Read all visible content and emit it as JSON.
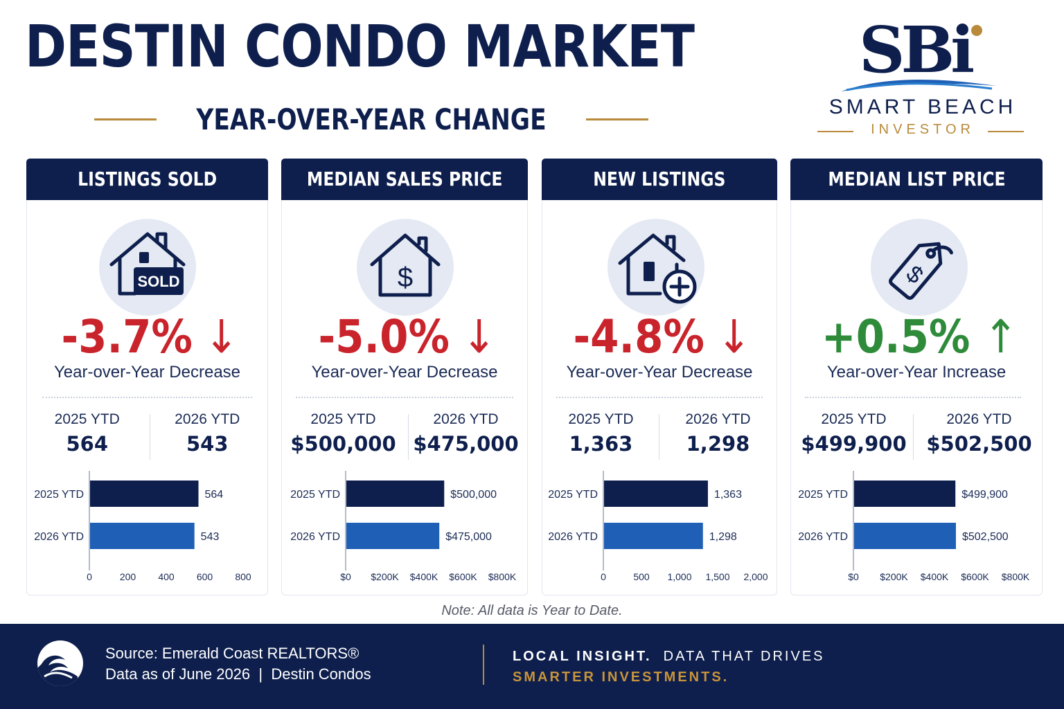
{
  "header": {
    "title": "DESTIN CONDO MARKET",
    "subtitle": "YEAR-OVER-YEAR CHANGE"
  },
  "logo": {
    "mark": "SBi",
    "name": "SMART BEACH",
    "sub": "INVESTOR"
  },
  "colors": {
    "navy": "#0e1f4d",
    "blue": "#1f5fb5",
    "red": "#c9232b",
    "green": "#2e8b3a",
    "gold": "#b98a3a"
  },
  "cards": [
    {
      "title": "LISTINGS SOLD",
      "icon": "house-sold-icon",
      "icon_label": "SOLD",
      "change": "-3.7%",
      "arrow": "↓",
      "direction": "down",
      "caption": "Year-over-Year Decrease",
      "col1_label": "2025 YTD",
      "col1_value": "564",
      "col2_label": "2026 YTD",
      "col2_value": "543"
    },
    {
      "title": "MEDIAN SALES PRICE",
      "icon": "house-dollar-icon",
      "change": "-5.0%",
      "arrow": "↓",
      "direction": "down",
      "caption": "Year-over-Year Decrease",
      "col1_label": "2025 YTD",
      "col1_value": "$500,000",
      "col2_label": "2026 YTD",
      "col2_value": "$475,000"
    },
    {
      "title": "NEW LISTINGS",
      "icon": "house-plus-icon",
      "change": "-4.8%",
      "arrow": "↓",
      "direction": "down",
      "caption": "Year-over-Year Decrease",
      "col1_label": "2025 YTD",
      "col1_value": "1,363",
      "col2_label": "2026 YTD",
      "col2_value": "1,298"
    },
    {
      "title": "MEDIAN LIST PRICE",
      "icon": "price-tag-icon",
      "change": "+0.5%",
      "arrow": "↑",
      "direction": "up",
      "caption": "Year-over-Year Increase",
      "col1_label": "2025 YTD",
      "col1_value": "$499,900",
      "col2_label": "2026 YTD",
      "col2_value": "$502,500"
    }
  ],
  "chart_data": [
    {
      "type": "bar",
      "orientation": "horizontal",
      "categories": [
        "2025 YTD",
        "2026 YTD"
      ],
      "values": [
        564,
        543
      ],
      "data_labels": [
        "564",
        "543"
      ],
      "xlim": [
        0,
        800
      ],
      "xticks": [
        "0",
        "200",
        "400",
        "600",
        "800"
      ]
    },
    {
      "type": "bar",
      "orientation": "horizontal",
      "categories": [
        "2025 YTD",
        "2026 YTD"
      ],
      "values": [
        500000,
        475000
      ],
      "data_labels": [
        "$500,000",
        "$475,000"
      ],
      "xlim": [
        0,
        800000
      ],
      "xticks": [
        "$0",
        "$200K",
        "$400K",
        "$600K",
        "$800K"
      ]
    },
    {
      "type": "bar",
      "orientation": "horizontal",
      "categories": [
        "2025 YTD",
        "2026 YTD"
      ],
      "values": [
        1363,
        1298
      ],
      "data_labels": [
        "1,363",
        "1,298"
      ],
      "xlim": [
        0,
        2000
      ],
      "xticks": [
        "0",
        "500",
        "1,000",
        "1,500",
        "2,000"
      ]
    },
    {
      "type": "bar",
      "orientation": "horizontal",
      "categories": [
        "2025 YTD",
        "2026 YTD"
      ],
      "values": [
        499900,
        502500
      ],
      "data_labels": [
        "$499,900",
        "$502,500"
      ],
      "xlim": [
        0,
        800000
      ],
      "xticks": [
        "$0",
        "$200K",
        "$400K",
        "$600K",
        "$800K"
      ]
    }
  ],
  "note": "Note: All data is Year to Date.",
  "footer": {
    "source_line1": "Source: Emerald Coast REALTORS®",
    "source_line2": "Data as of June 2026  |  Destin Condos",
    "tag_bold": "LOCAL INSIGHT.",
    "tag_rest": "DATA THAT DRIVES",
    "tag_gold": "SMARTER INVESTMENTS."
  }
}
